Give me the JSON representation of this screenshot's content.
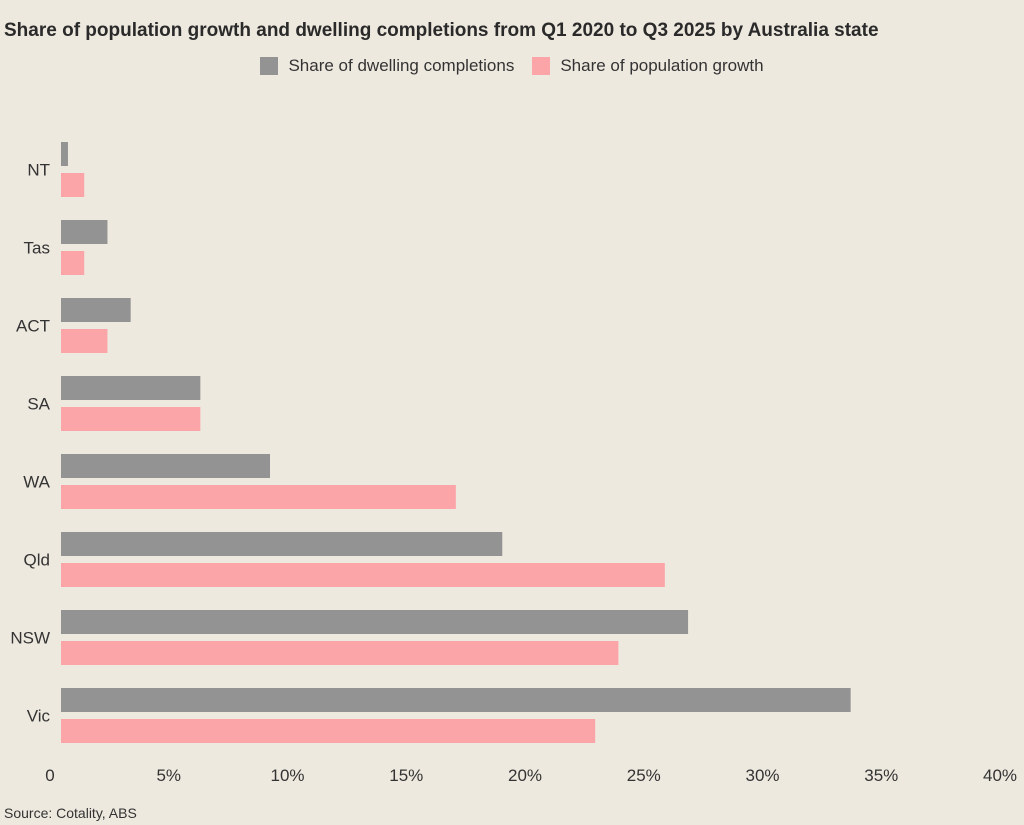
{
  "source": "Source: Cotality, ABS",
  "chart_data": {
    "type": "bar",
    "orientation": "horizontal",
    "title": "Share of population growth and dwelling completions from Q1 2020 to Q3 2025 by Australia state",
    "categories": [
      "NT",
      "Tas",
      "ACT",
      "SA",
      "WA",
      "Qld",
      "NSW",
      "Vic"
    ],
    "series": [
      {
        "name": "Share of dwelling completions",
        "color": "#939393",
        "values": [
          0.3,
          2,
          3,
          6,
          9,
          19,
          27,
          34
        ]
      },
      {
        "name": "Share of population growth",
        "color": "#FCA5A8",
        "values": [
          1,
          1,
          2,
          6,
          17,
          26,
          24,
          23
        ]
      }
    ],
    "xlim": [
      0,
      40
    ],
    "xticks": [
      "0",
      "5%",
      "10%",
      "15%",
      "20%",
      "25%",
      "30%",
      "35%",
      "40%"
    ],
    "xlabel": "",
    "ylabel": "",
    "legend_position": "top-center",
    "grid": false
  }
}
